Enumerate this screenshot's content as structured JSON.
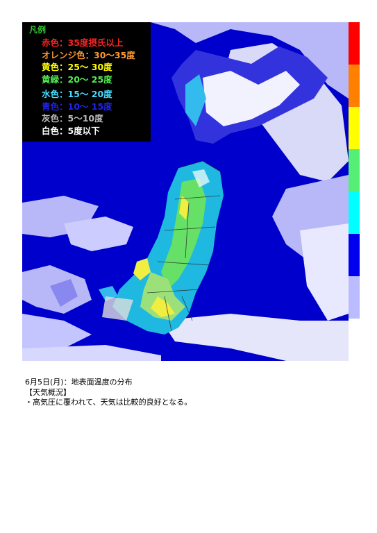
{
  "legend": {
    "title": "凡例",
    "items": [
      {
        "label": "赤色：35度摂氏以上",
        "color": "#ff2222"
      },
      {
        "label": "オレンジ色：30～35度",
        "color": "#ff9933"
      },
      {
        "label": "黄色：25～ 30度",
        "color": "#ffff00"
      },
      {
        "label": "黄緑：20～ 25度",
        "color": "#55ee55"
      },
      {
        "label": "水色：15～ 20度",
        "color": "#44ddff"
      },
      {
        "label": "青色：10～ 15度",
        "color": "#2222ee"
      },
      {
        "label": "灰色：5～10度",
        "color": "#bbbbbb"
      },
      {
        "label": "白色：5度以下",
        "color": "#ffffff"
      }
    ]
  },
  "colorbar": [
    {
      "color": "#ff0000"
    },
    {
      "color": "#ff8000"
    },
    {
      "color": "#ffff00"
    },
    {
      "color": "#55ee77"
    },
    {
      "color": "#00ffff"
    },
    {
      "color": "#0000ee"
    },
    {
      "color": "#bbbbff"
    }
  ],
  "caption": {
    "date_line": "6月5日(月)：地表面温度の分布",
    "heading": "【天気概況】",
    "summary": "・高気圧に覆われて、天気は比較的良好となる。"
  }
}
